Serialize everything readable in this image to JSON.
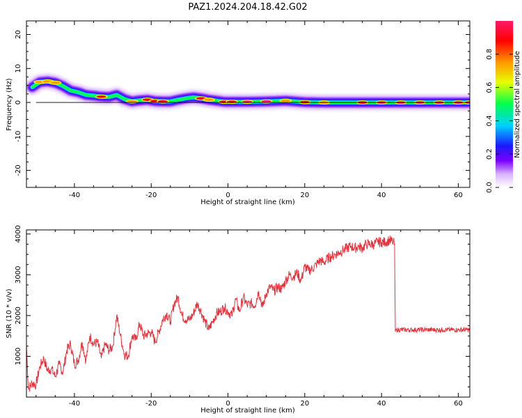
{
  "title": "PAZ1.2024.204.18.42.G02",
  "colors": {
    "snr_line": "#e8303a",
    "axis": "#000000",
    "colormap": [
      "#ffffff",
      "#d9b3ff",
      "#7a00ff",
      "#1a1aff",
      "#00d0ff",
      "#00ff4d",
      "#e6ff00",
      "#ff9900",
      "#ff0000",
      "#ff1a6a"
    ]
  },
  "chart_data": [
    {
      "type": "heatmap",
      "xlabel": "Height of straight line (km)",
      "ylabel": "Frequency (Hz)",
      "xlim": [
        -52.5,
        63
      ],
      "ylim": [
        -25,
        24
      ],
      "x_ticks": [
        -40,
        -20,
        0,
        20,
        40,
        60
      ],
      "x_tick_labels": [
        "-40",
        "-20",
        "0",
        "20",
        "40",
        "60"
      ],
      "y_ticks": [
        -20,
        -10,
        0,
        10,
        20
      ],
      "y_tick_labels": [
        "-20",
        "-10",
        "0",
        "10",
        "20"
      ],
      "ridge": {
        "x": [
          -51,
          -49,
          -47,
          -45,
          -43,
          -41,
          -39,
          -37,
          -35,
          -33,
          -31,
          -29,
          -27,
          -25,
          -23,
          -21,
          -19,
          -17,
          -15,
          -13,
          -11,
          -9,
          -7,
          -5,
          -3,
          -1,
          1,
          5,
          10,
          15,
          20,
          25,
          30,
          35,
          40,
          45,
          50,
          55,
          60,
          63
        ],
        "freq": [
          4.5,
          6.0,
          6.2,
          5.8,
          4.8,
          3.5,
          3.0,
          2.2,
          2.0,
          1.7,
          1.6,
          2.2,
          1.0,
          0.3,
          0.6,
          0.8,
          0.4,
          0.3,
          0.3,
          0.8,
          1.2,
          1.5,
          1.2,
          0.8,
          0.5,
          0.2,
          0.2,
          0.2,
          0.3,
          0.5,
          0.1,
          0.0,
          0.0,
          0.0,
          0.0,
          0.0,
          0.0,
          0.0,
          0.0,
          0.0
        ],
        "amplitude": [
          0.55,
          0.75,
          0.8,
          0.75,
          0.6,
          0.55,
          0.5,
          0.6,
          0.65,
          0.85,
          0.6,
          0.55,
          0.55,
          0.8,
          0.55,
          0.85,
          0.9,
          0.9,
          0.7,
          0.6,
          0.6,
          0.7,
          0.85,
          0.8,
          0.6,
          0.9,
          0.9,
          0.95,
          0.95,
          0.8,
          0.85,
          0.75,
          0.6,
          0.85,
          0.95,
          0.95,
          0.95,
          0.95,
          0.95,
          0.95
        ]
      },
      "colorbar": {
        "label": "Normalized spectral amplitude",
        "ticks": [
          0.0,
          0.2,
          0.4,
          0.6,
          0.8
        ],
        "tick_labels": [
          "0.0",
          "0.2",
          "0.4",
          "0.6",
          "0.8"
        ]
      }
    },
    {
      "type": "line",
      "xlabel": "Height of straight line (km)",
      "ylabel": "SNR (10 * v/v)",
      "xlim": [
        -52.5,
        63
      ],
      "ylim": [
        0,
        4100
      ],
      "x_ticks": [
        -40,
        -20,
        0,
        20,
        40,
        60
      ],
      "x_tick_labels": [
        "-40",
        "-20",
        "0",
        "20",
        "40",
        "60"
      ],
      "y_ticks": [
        1000,
        2000,
        3000,
        4000
      ],
      "y_tick_labels": [
        "1000",
        "2000",
        "3000",
        "4000"
      ],
      "series": [
        {
          "x": [
            -52.5,
            -52,
            -51,
            -50,
            -49,
            -48,
            -47,
            -46,
            -45,
            -44,
            -43,
            -42,
            -41,
            -40,
            -39,
            -38,
            -37,
            -36,
            -35,
            -34,
            -33,
            -32,
            -31,
            -30,
            -29,
            -28,
            -27,
            -26,
            -25,
            -24,
            -23,
            -22,
            -21,
            -20,
            -19,
            -18,
            -17,
            -16,
            -15,
            -14,
            -13,
            -12,
            -11,
            -10,
            -9,
            -8,
            -7,
            -6,
            -5,
            -4,
            -3,
            -2,
            -1,
            0,
            1,
            2,
            3,
            4,
            5,
            6,
            7,
            8,
            9,
            10,
            11,
            12,
            13,
            14,
            15,
            16,
            17,
            18,
            19,
            20,
            21,
            22,
            23,
            24,
            25,
            26,
            27,
            28,
            29,
            30,
            31,
            32,
            33,
            34,
            35,
            36,
            37,
            38,
            39,
            40,
            41,
            42,
            43,
            43.4,
            43.6,
            44,
            46,
            48,
            50,
            52,
            54,
            56,
            58,
            60,
            62,
            63
          ],
          "y": [
            1250,
            200,
            350,
            300,
            750,
            950,
            650,
            700,
            500,
            800,
            600,
            1150,
            1300,
            800,
            900,
            1350,
            900,
            1500,
            1300,
            1350,
            950,
            1300,
            1150,
            1250,
            2000,
            1500,
            1050,
            1000,
            1500,
            1400,
            1800,
            1500,
            1550,
            1600,
            1350,
            1600,
            1900,
            2050,
            1850,
            2300,
            2450,
            2000,
            1900,
            1900,
            2050,
            2300,
            2100,
            1850,
            1650,
            1850,
            2050,
            2100,
            2200,
            2100,
            2000,
            2400,
            2100,
            2450,
            2250,
            2300,
            2250,
            2600,
            2200,
            2550,
            2700,
            2600,
            2700,
            2650,
            2850,
            3000,
            2950,
            3050,
            2850,
            3200,
            3100,
            3150,
            3250,
            3350,
            3300,
            3400,
            3450,
            3500,
            3550,
            3600,
            3650,
            3700,
            3650,
            3700,
            3650,
            3750,
            3750,
            3750,
            3800,
            3800,
            3800,
            3850,
            3800,
            3750,
            1600,
            1650,
            1650,
            1650,
            1650,
            1650,
            1650,
            1650,
            1650,
            1650,
            1650,
            1650
          ]
        }
      ]
    }
  ]
}
